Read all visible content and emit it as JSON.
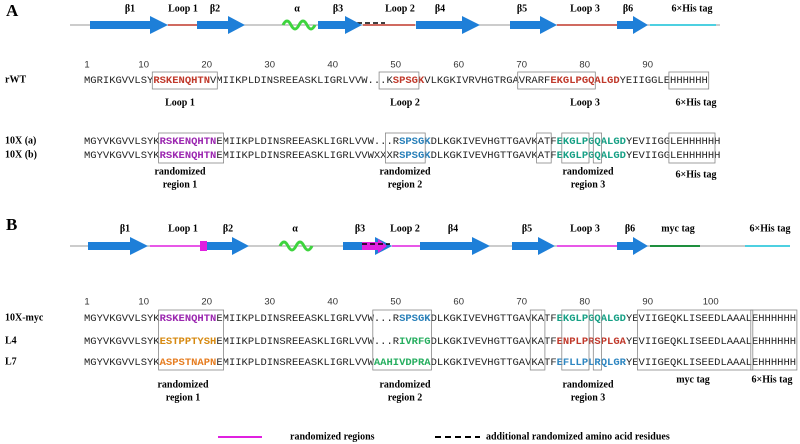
{
  "panel_a": {
    "letter": "A",
    "domains": [
      "β1",
      "Loop 1",
      "β2",
      "α",
      "β3",
      "Loop 2",
      "β4",
      "β5",
      "Loop 3",
      "β6",
      "6×His tag"
    ],
    "ruler": [
      1,
      10,
      20,
      30,
      40,
      50,
      60,
      70,
      80,
      90
    ],
    "rows": [
      {
        "label": "rWT",
        "segments": [
          {
            "text": "MGRIKGVVLSY",
            "color": "#222"
          },
          {
            "text": "RSKENQHTN",
            "color": "#c0392b"
          },
          {
            "text": "VMIIKPLDINSREEASKLIGRLVVW...K",
            "color": "#222"
          },
          {
            "text": "SPSGK",
            "color": "#c0392b"
          },
          {
            "text": "VLKGKIVRVHGTRGAVRARF",
            "color": "#222"
          },
          {
            "text": "EKGLPGQALGD",
            "color": "#c0392b"
          },
          {
            "text": "YEIIGGLEHHHHHH",
            "color": "#222"
          }
        ]
      },
      {
        "label": "10X (a)",
        "segments": [
          {
            "text": "MGYVKGVVLSYK",
            "color": "#222"
          },
          {
            "text": "RSKENQHTN",
            "color": "#9b27b0"
          },
          {
            "text": "EMIIKPLDINSREEASKLIGRLVVW...R",
            "color": "#222"
          },
          {
            "text": "SPSGK",
            "color": "#2980b9"
          },
          {
            "text": "DLKGKIVEVHGTTGAVKATF",
            "color": "#222"
          },
          {
            "text": "EKGLPGQALGD",
            "color": "#16a085"
          },
          {
            "text": "YEVIIGGLEHHHHHH",
            "color": "#222"
          }
        ]
      },
      {
        "label": "10X (b)",
        "segments": [
          {
            "text": "MGYVKGVVLSYK",
            "color": "#222"
          },
          {
            "text": "RSKENQHTN",
            "color": "#9b27b0"
          },
          {
            "text": "EMIIKPLDINSREEASKLIGRLVVWXXXR",
            "color": "#222"
          },
          {
            "text": "SPSGK",
            "color": "#2980b9"
          },
          {
            "text": "DLKGKIVEVHGTTGAVKATF",
            "color": "#222"
          },
          {
            "text": "EKGLPGQALGD",
            "color": "#16a085"
          },
          {
            "text": "YEVIIGGLEHHHHHH",
            "color": "#222"
          }
        ]
      }
    ],
    "box_labels": [
      "Loop 1",
      "Loop 2",
      "Loop 3",
      "6×His tag"
    ],
    "region_labels": [
      [
        "randomized",
        "region 1"
      ],
      [
        "randomized",
        "region 2"
      ],
      [
        "randomized",
        "region 3"
      ]
    ],
    "tag_label": "6×His tag"
  },
  "panel_b": {
    "letter": "B",
    "domains": [
      "β1",
      "Loop 1",
      "β2",
      "α",
      "β3",
      "Loop 2",
      "β4",
      "β5",
      "Loop 3",
      "β6",
      "myc tag",
      "6×His tag"
    ],
    "ruler": [
      1,
      10,
      20,
      30,
      40,
      50,
      60,
      70,
      80,
      90,
      100
    ],
    "rows": [
      {
        "label": "10X-myc",
        "segments": [
          {
            "text": "MGYVKGVVLSYK",
            "color": "#222"
          },
          {
            "text": "RSKENQHTN",
            "color": "#9b27b0"
          },
          {
            "text": "EMIIKPLDINSREEASKLIGRLVVW...R",
            "color": "#222"
          },
          {
            "text": "SPSGK",
            "color": "#2980b9"
          },
          {
            "text": "DLKGKIVEVHGTTGAVKATF",
            "color": "#222"
          },
          {
            "text": "EKGLPGQALGD",
            "color": "#16a085"
          },
          {
            "text": "YEVIIGEQKLISEEDLAAALEHHHHHH",
            "color": "#222"
          }
        ]
      },
      {
        "label": "L4",
        "segments": [
          {
            "text": "MGYVKGVVLSYK",
            "color": "#222"
          },
          {
            "text": "ESTPPTYSH",
            "color": "#d68910"
          },
          {
            "text": "EMIIKPLDINSREEASKLIGRLVVW...R",
            "color": "#222"
          },
          {
            "text": "IVRFG",
            "color": "#27ae60"
          },
          {
            "text": "DLKGKIVEVHGTTGAVKATF",
            "color": "#222"
          },
          {
            "text": "ENPLPRSPLGA",
            "color": "#c0392b"
          },
          {
            "text": "YEVIIGEQKLISEEDLAAALEHHHHHH",
            "color": "#222"
          }
        ]
      },
      {
        "label": "L7",
        "segments": [
          {
            "text": "MGYVKGVVLSYK",
            "color": "#222"
          },
          {
            "text": "ASPSTNAPN",
            "color": "#e67e22"
          },
          {
            "text": "EMIIKPLDINSREEASKLIGRLVVW",
            "color": "#222"
          },
          {
            "text": "AAHIVDPRA",
            "color": "#27ae60"
          },
          {
            "text": "DLKGKIVEVHGTTGAVKATF",
            "color": "#222"
          },
          {
            "text": "EFLLPLRQLGR",
            "color": "#2e86c1"
          },
          {
            "text": "YEVIIGEQKLISEEDLAAALEHHHHHH",
            "color": "#222"
          }
        ]
      }
    ],
    "region_labels": [
      [
        "randomized",
        "region 1"
      ],
      [
        "randomized",
        "region 2"
      ],
      [
        "randomized",
        "region 3"
      ]
    ],
    "tag_labels": [
      "myc tag",
      "6×His tag"
    ]
  },
  "legend": [
    "randomized regions",
    "additional randomized amino acid residues"
  ]
}
